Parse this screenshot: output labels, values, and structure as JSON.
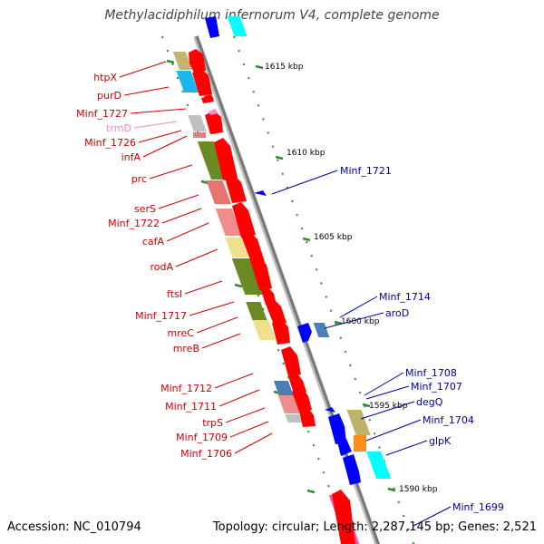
{
  "title": "Methylacidiphilum infernorum V4, complete genome",
  "footer": {
    "accession": "Accession: NC_010794",
    "stats": "Topology: circular; Length: 2,287,145 bp; Genes: 2,521"
  },
  "colors": {
    "backbone": "#8c8c8c",
    "left_label": "#cc0000",
    "right_label": "#00009e",
    "pink_label": "#ee88cc",
    "tick": "#2e8b2e",
    "red_gene": "#ff0000",
    "blue_gene": "#0000ff"
  },
  "scale_labels": [
    "1615 kbp",
    "1610 kbp",
    "1605 kbp",
    "1600 kbp",
    "1595 kbp",
    "1590 kbp"
  ],
  "left_labels": [
    "htpX",
    "purD",
    "Minf_1727",
    "trmD",
    "Minf_1726",
    "infA",
    "prc",
    "serS",
    "Minf_1722",
    "cafA",
    "rodA",
    "ftsI",
    "Minf_1717",
    "mreC",
    "mreB",
    "Minf_1712",
    "Minf_1711",
    "trpS",
    "Minf_1709",
    "Minf_1706"
  ],
  "right_labels": [
    "Minf_1721",
    "Minf_1714",
    "aroD",
    "Minf_1708",
    "Minf_1707",
    "degQ",
    "Minf_1704",
    "glpK",
    "Minf_1699"
  ]
}
